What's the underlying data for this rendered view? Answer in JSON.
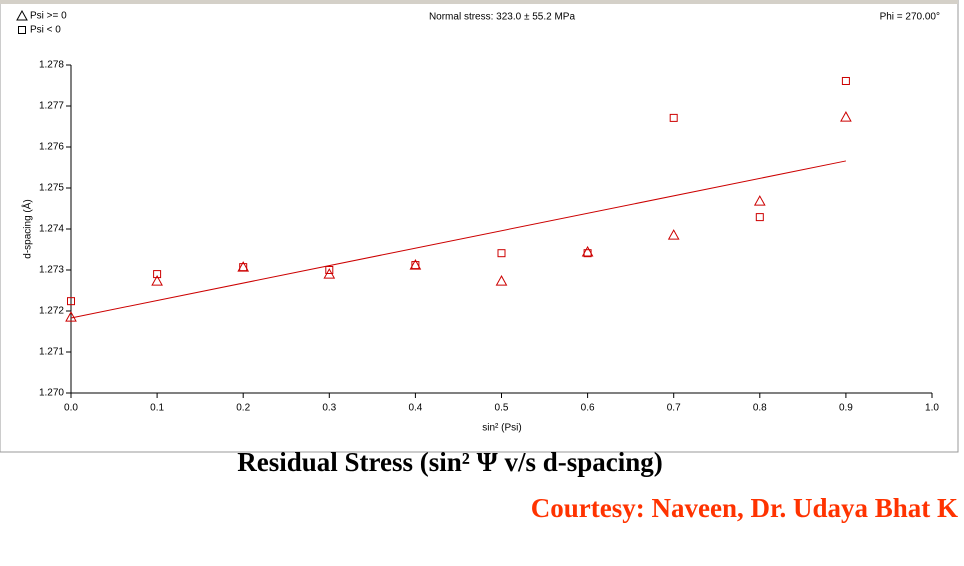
{
  "chart_data": {
    "type": "scatter",
    "title": "Normal stress: 323.0 ± 55.2 MPa",
    "subtitle": "Phi = 270.00°",
    "x_label": "sin² (Psi)",
    "y_label": "d-spacing (Å)",
    "xlim": [
      0,
      1
    ],
    "ylim": [
      1.27,
      1.278
    ],
    "xticks": [
      {
        "value": 0,
        "label": "0.0"
      },
      0.1,
      0.2,
      0.3,
      0.4,
      0.5,
      0.6,
      0.7,
      0.8,
      0.9,
      {
        "value": 1,
        "label": "1.0"
      }
    ],
    "yticks": [
      {
        "value": 1.27,
        "label": "1.270"
      },
      1.271,
      1.272,
      1.273,
      1.274,
      1.275,
      1.276,
      1.277,
      1.278
    ],
    "legend": "top-left",
    "series": [
      {
        "name": "Psi >= 0",
        "color": "#cc0000",
        "marker": "triangle",
        "x": [
          0,
          0.1,
          0.2,
          0.3,
          0.4,
          0.5,
          0.6,
          0.7,
          0.8,
          0.9
        ],
        "values": [
          1.27185,
          1.27273,
          1.27307,
          1.2729,
          1.27312,
          1.27273,
          1.27344,
          1.27385,
          1.27468,
          1.27673
        ]
      },
      {
        "name": "Psi <  0",
        "color": "#cc0000",
        "marker": "square",
        "x": [
          0,
          0.1,
          0.2,
          0.3,
          0.4,
          0.5,
          0.6,
          0.7,
          0.8,
          0.9
        ],
        "values": [
          1.27224,
          1.2729,
          1.27307,
          1.273,
          1.27312,
          1.27341,
          1.27341,
          1.27671,
          1.27429,
          1.27761
        ]
      }
    ],
    "fit_line": {
      "color": "#cc0000",
      "x": [
        0,
        0.9
      ],
      "values": [
        1.27183,
        1.27566
      ]
    }
  },
  "caption": "Residual Stress (sin² Ψ v/s d-spacing)",
  "credit": "Courtesy: Naveen, Dr. Udaya Bhat K"
}
